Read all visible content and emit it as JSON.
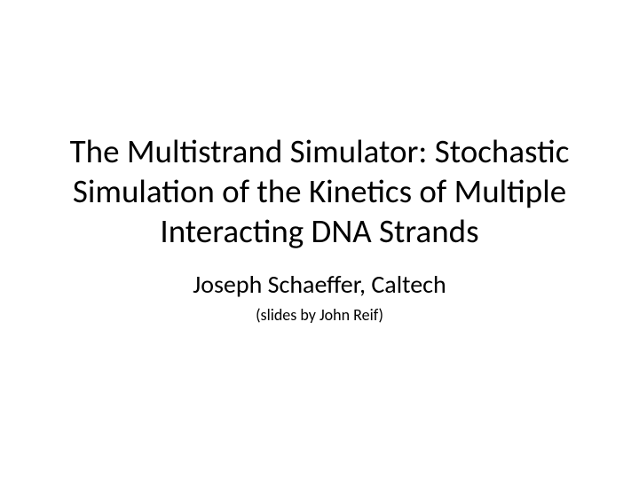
{
  "slide": {
    "title": "The Multistrand Simulator: Stochastic Simulation of the Kinetics of Multiple Interacting DNA Strands",
    "subtitle": "Joseph Schaeffer, Caltech",
    "credits": "(slides by John Reif)",
    "background_color": "#ffffff",
    "text_color": "#000000",
    "title_fontsize": 37,
    "subtitle_fontsize": 28,
    "credits_fontsize": 18,
    "font_family": "Calibri"
  }
}
